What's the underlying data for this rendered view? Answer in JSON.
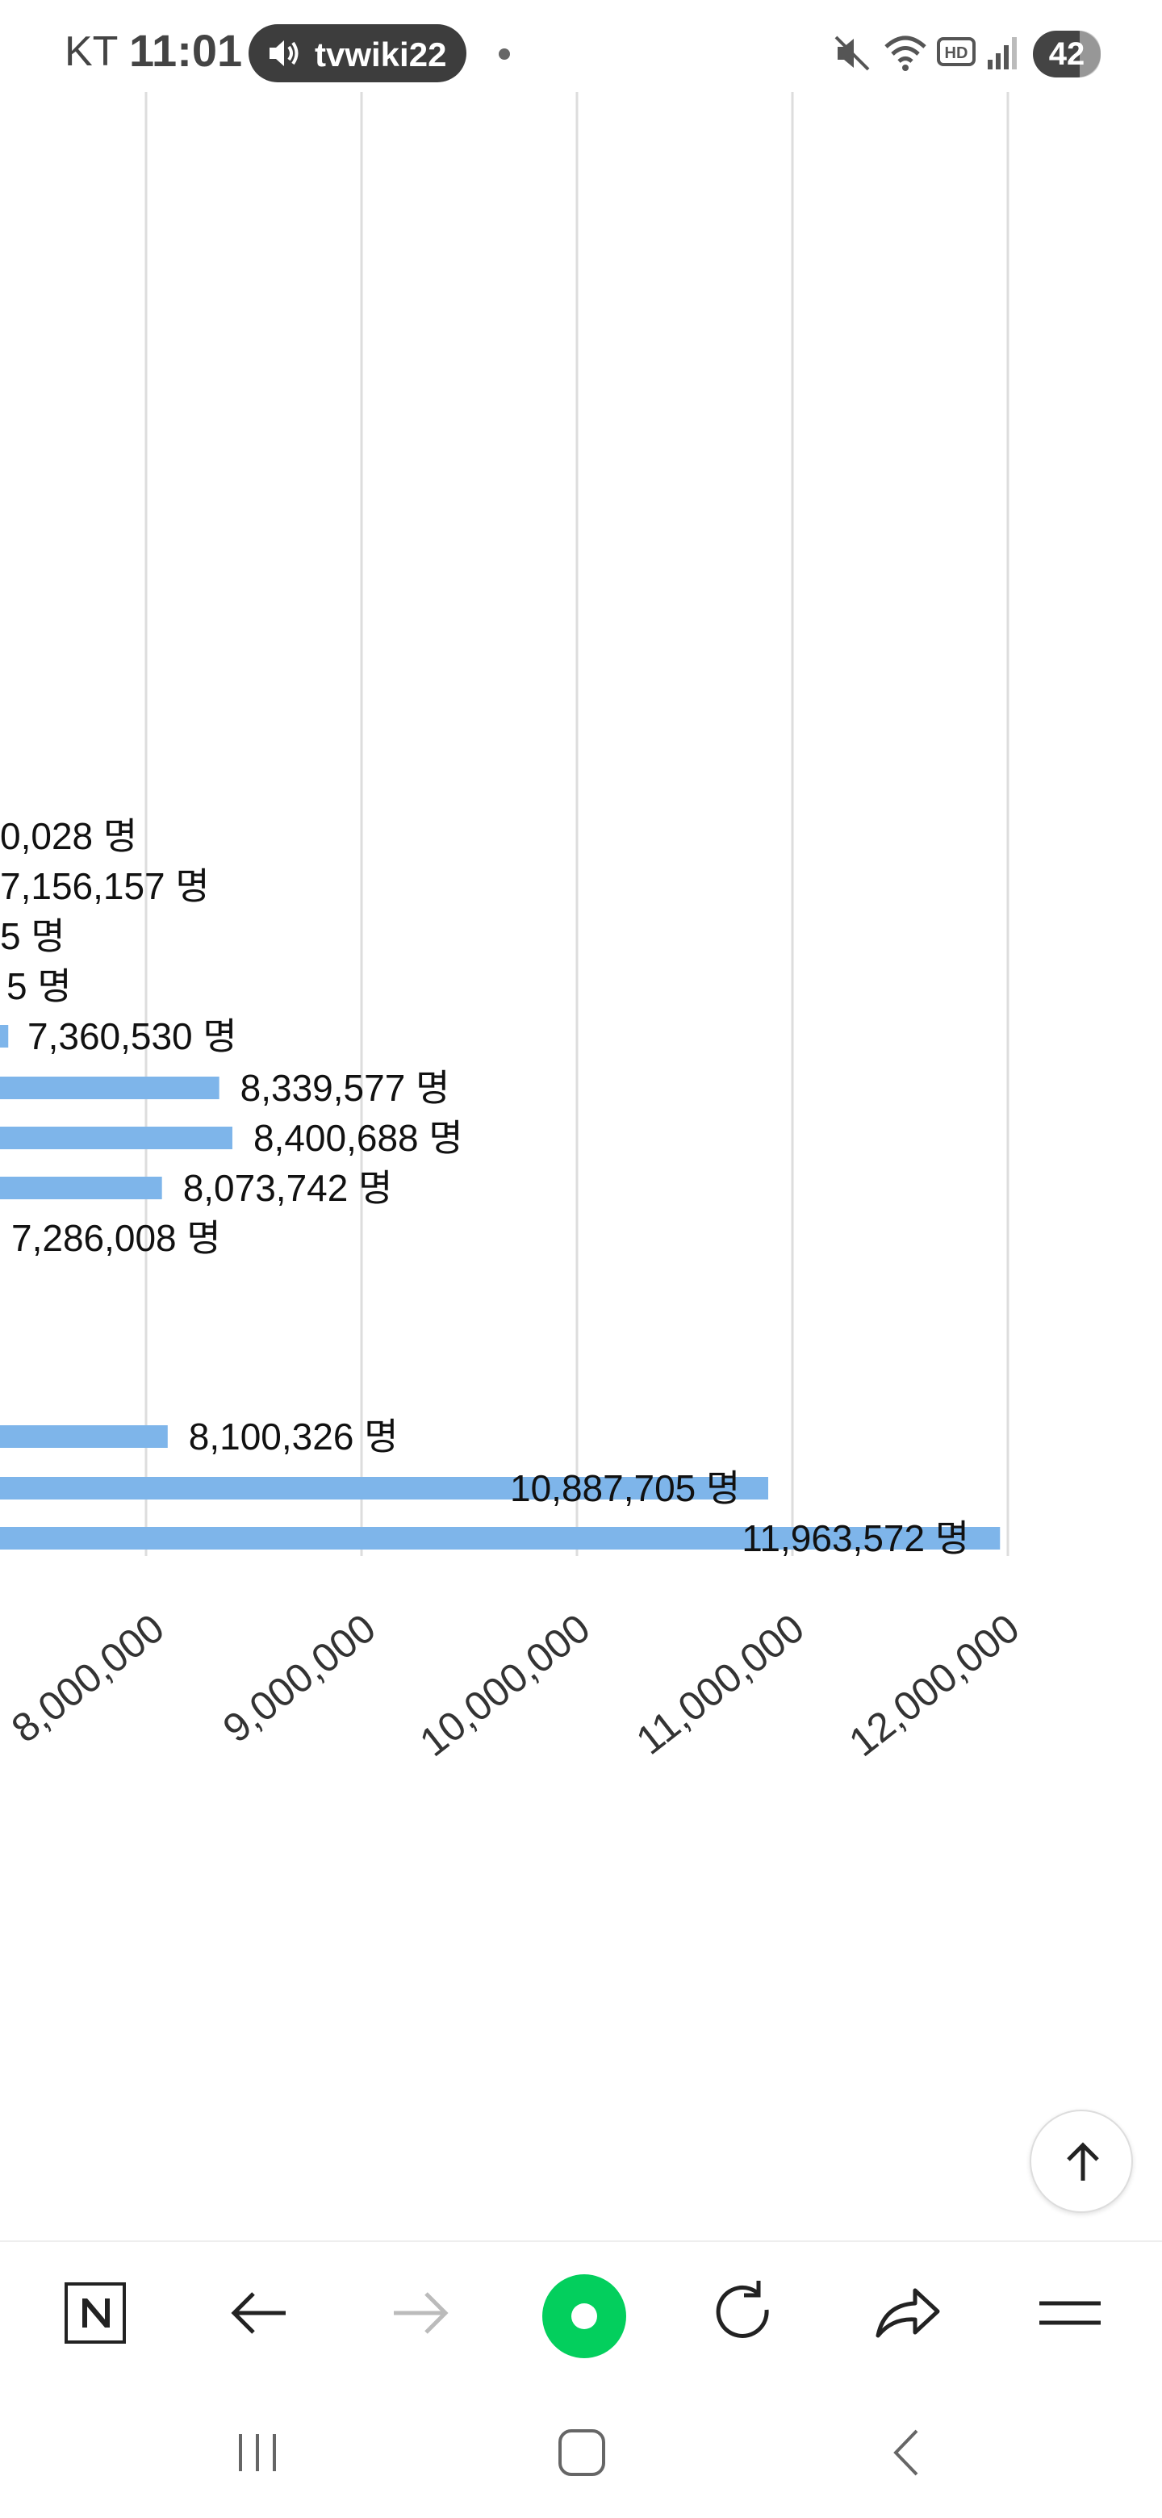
{
  "status_bar": {
    "carrier": "KT",
    "time": "11:01",
    "media_label": "tvwiki22",
    "battery": "42",
    "icons": [
      "volume-icon",
      "mute-icon",
      "wifi-icon",
      "hd-icon",
      "signal-icon"
    ]
  },
  "chart_data": {
    "type": "bar",
    "orientation": "horizontal",
    "value_suffix": " 명",
    "x_ticks": [
      "8,000,000",
      "9,000,000",
      "10,000,000",
      "11,000,000",
      "12,000,000"
    ],
    "x_tick_values": [
      8000000,
      9000000,
      10000000,
      11000000,
      12000000
    ],
    "grid": true,
    "bar_color": "#7eb5ea",
    "bars": [
      {
        "value": null,
        "label": "0,028 명"
      },
      {
        "value": 7156157,
        "label": "7,156,157 명"
      },
      {
        "value": null,
        "label": "5 명"
      },
      {
        "value": null,
        "label": "5 명"
      },
      {
        "value": 7360530,
        "label": "7,360,530 명"
      },
      {
        "value": 8339577,
        "label": "8,339,577 명"
      },
      {
        "value": 8400688,
        "label": "8,400,688 명"
      },
      {
        "value": 8073742,
        "label": "8,073,742 명"
      },
      {
        "value": 7286008,
        "label": "7,286,008 명"
      },
      {
        "value": 8100326,
        "label": "8,100,326 명"
      },
      {
        "value": 10887705,
        "label": "10,887,705 명"
      },
      {
        "value": 11963572,
        "label": "11,963,572 명"
      }
    ]
  },
  "scroll_top": {
    "icon": "arrow-up-icon"
  },
  "toolbar": {
    "icons": [
      "naver-n-icon",
      "back-arrow-icon",
      "forward-arrow-icon",
      "green-home-icon",
      "reload-icon",
      "share-icon",
      "menu-icon"
    ]
  },
  "system_nav": {
    "icons": [
      "recent-apps-icon",
      "home-icon",
      "back-icon"
    ]
  },
  "colors": {
    "bar": "#7eb5ea",
    "grid": "#dddddd",
    "accent_green": "#03cf5d"
  }
}
